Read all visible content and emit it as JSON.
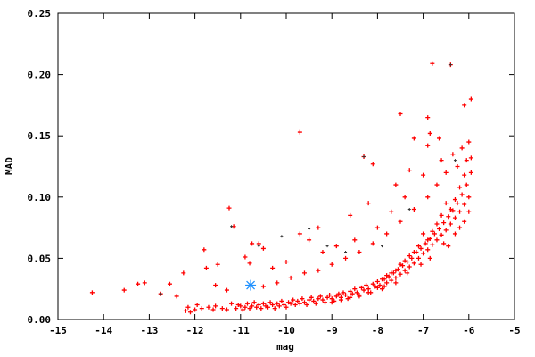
{
  "chart_data": {
    "type": "scatter",
    "title": "",
    "xlabel": "mag",
    "ylabel": "MAD",
    "xlim": [
      -15,
      -5
    ],
    "ylim": [
      0,
      0.25
    ],
    "grid": false,
    "xticks": [
      "-15",
      "-14",
      "-13",
      "-12",
      "-11",
      "-10",
      "-9",
      "-8",
      "-7",
      "-6",
      "-5"
    ],
    "yticks": [
      "0.00",
      "0.05",
      "0.10",
      "0.15",
      "0.20",
      "0.25"
    ],
    "colors": {
      "main": "#ff0000",
      "secondary": "#333333",
      "highlight": "#1e90ff"
    },
    "series": [
      {
        "marker": "plus",
        "color": "#ff0000",
        "points": [
          [
            -12.2,
            0.007
          ],
          [
            -12.15,
            0.01
          ],
          [
            -12.1,
            0.006
          ],
          [
            -12.0,
            0.008
          ],
          [
            -11.95,
            0.012
          ],
          [
            -11.85,
            0.009
          ],
          [
            -11.7,
            0.01
          ],
          [
            -11.6,
            0.008
          ],
          [
            -11.55,
            0.011
          ],
          [
            -11.4,
            0.009
          ],
          [
            -11.3,
            0.008
          ],
          [
            -11.2,
            0.013
          ],
          [
            -11.1,
            0.009
          ],
          [
            -11.05,
            0.012
          ],
          [
            -11.0,
            0.011
          ],
          [
            -10.95,
            0.008
          ],
          [
            -10.9,
            0.01
          ],
          [
            -10.85,
            0.013
          ],
          [
            -10.8,
            0.009
          ],
          [
            -10.75,
            0.011
          ],
          [
            -10.7,
            0.014
          ],
          [
            -10.65,
            0.01
          ],
          [
            -10.6,
            0.012
          ],
          [
            -10.55,
            0.009
          ],
          [
            -10.5,
            0.013
          ],
          [
            -10.45,
            0.011
          ],
          [
            -10.4,
            0.01
          ],
          [
            -10.35,
            0.014
          ],
          [
            -10.3,
            0.012
          ],
          [
            -10.25,
            0.009
          ],
          [
            -10.2,
            0.013
          ],
          [
            -10.15,
            0.011
          ],
          [
            -10.1,
            0.015
          ],
          [
            -10.05,
            0.012
          ],
          [
            -10.0,
            0.01
          ],
          [
            -9.95,
            0.014
          ],
          [
            -9.9,
            0.013
          ],
          [
            -9.85,
            0.016
          ],
          [
            -9.8,
            0.012
          ],
          [
            -9.75,
            0.015
          ],
          [
            -9.7,
            0.013
          ],
          [
            -9.65,
            0.017
          ],
          [
            -9.6,
            0.014
          ],
          [
            -9.55,
            0.012
          ],
          [
            -9.5,
            0.016
          ],
          [
            -9.45,
            0.018
          ],
          [
            -9.4,
            0.015
          ],
          [
            -9.35,
            0.013
          ],
          [
            -9.3,
            0.017
          ],
          [
            -9.25,
            0.019
          ],
          [
            -9.2,
            0.016
          ],
          [
            -9.15,
            0.014
          ],
          [
            -9.1,
            0.018
          ],
          [
            -9.05,
            0.02
          ],
          [
            -9.0,
            0.017
          ],
          [
            -8.95,
            0.015
          ],
          [
            -8.9,
            0.019
          ],
          [
            -8.85,
            0.021
          ],
          [
            -8.8,
            0.018
          ],
          [
            -8.75,
            0.022
          ],
          [
            -8.7,
            0.02
          ],
          [
            -8.65,
            0.017
          ],
          [
            -8.6,
            0.023
          ],
          [
            -8.55,
            0.021
          ],
          [
            -8.5,
            0.025
          ],
          [
            -8.45,
            0.022
          ],
          [
            -8.4,
            0.019
          ],
          [
            -8.35,
            0.026
          ],
          [
            -8.3,
            0.024
          ],
          [
            -8.25,
            0.028
          ],
          [
            -8.2,
            0.025
          ],
          [
            -8.15,
            0.022
          ],
          [
            -8.1,
            0.029
          ],
          [
            -8.05,
            0.027
          ],
          [
            -8.0,
            0.031
          ],
          [
            -7.95,
            0.028
          ],
          [
            -7.9,
            0.025
          ],
          [
            -7.85,
            0.033
          ],
          [
            -7.8,
            0.03
          ],
          [
            -7.75,
            0.035
          ],
          [
            -7.7,
            0.032
          ],
          [
            -7.65,
            0.038
          ],
          [
            -7.6,
            0.034
          ],
          [
            -7.55,
            0.041
          ],
          [
            -7.5,
            0.037
          ],
          [
            -7.45,
            0.044
          ],
          [
            -7.4,
            0.04
          ],
          [
            -7.35,
            0.047
          ],
          [
            -7.3,
            0.043
          ],
          [
            -7.25,
            0.05
          ],
          [
            -7.2,
            0.046
          ],
          [
            -7.15,
            0.055
          ],
          [
            -7.1,
            0.05
          ],
          [
            -7.05,
            0.058
          ],
          [
            -7.0,
            0.054
          ],
          [
            -6.95,
            0.062
          ],
          [
            -6.9,
            0.057
          ],
          [
            -6.85,
            0.066
          ],
          [
            -6.8,
            0.061
          ],
          [
            -6.75,
            0.07
          ],
          [
            -6.7,
            0.065
          ],
          [
            -6.65,
            0.074
          ],
          [
            -6.6,
            0.069
          ],
          [
            -6.55,
            0.079
          ],
          [
            -6.5,
            0.073
          ],
          [
            -6.45,
            0.084
          ],
          [
            -6.4,
            0.078
          ],
          [
            -6.35,
            0.089
          ],
          [
            -6.3,
            0.083
          ],
          [
            -6.25,
            0.095
          ],
          [
            -6.2,
            0.088
          ],
          [
            -6.15,
            0.102
          ],
          [
            -6.1,
            0.094
          ],
          [
            -6.05,
            0.11
          ],
          [
            -6.0,
            0.1
          ],
          [
            -5.95,
            0.12
          ],
          [
            -6.05,
            0.13
          ],
          [
            -6.1,
            0.118
          ],
          [
            -6.2,
            0.108
          ],
          [
            -6.3,
            0.098
          ],
          [
            -6.4,
            0.09
          ],
          [
            -6.15,
            0.14
          ],
          [
            -6.0,
            0.145
          ],
          [
            -5.95,
            0.132
          ],
          [
            -6.25,
            0.125
          ],
          [
            -6.5,
            0.095
          ],
          [
            -6.6,
            0.085
          ],
          [
            -6.7,
            0.078
          ],
          [
            -6.8,
            0.072
          ],
          [
            -6.9,
            0.065
          ],
          [
            -7.0,
            0.07
          ],
          [
            -7.1,
            0.06
          ],
          [
            -7.2,
            0.055
          ],
          [
            -7.3,
            0.052
          ],
          [
            -7.4,
            0.048
          ],
          [
            -7.5,
            0.045
          ],
          [
            -7.6,
            0.04
          ],
          [
            -7.7,
            0.038
          ],
          [
            -7.8,
            0.036
          ],
          [
            -7.9,
            0.033
          ],
          [
            -8.0,
            0.026
          ],
          [
            -8.2,
            0.022
          ],
          [
            -8.4,
            0.02
          ],
          [
            -8.6,
            0.018
          ],
          [
            -8.8,
            0.016
          ],
          [
            -9.0,
            0.014
          ],
          [
            -6.45,
            0.06
          ],
          [
            -6.55,
            0.062
          ],
          [
            -6.85,
            0.05
          ],
          [
            -7.05,
            0.045
          ],
          [
            -7.35,
            0.038
          ],
          [
            -7.6,
            0.03
          ],
          [
            -7.85,
            0.027
          ],
          [
            -6.2,
            0.075
          ],
          [
            -6.3,
            0.07
          ],
          [
            -6.0,
            0.088
          ],
          [
            -6.1,
            0.08
          ],
          [
            -6.5,
            0.12
          ],
          [
            -6.7,
            0.11
          ],
          [
            -6.9,
            0.1
          ],
          [
            -7.2,
            0.09
          ],
          [
            -7.5,
            0.08
          ],
          [
            -7.8,
            0.07
          ],
          [
            -8.1,
            0.062
          ],
          [
            -8.4,
            0.055
          ],
          [
            -8.7,
            0.05
          ],
          [
            -9.0,
            0.045
          ],
          [
            -9.3,
            0.04
          ],
          [
            -9.6,
            0.038
          ],
          [
            -9.9,
            0.034
          ],
          [
            -10.2,
            0.03
          ],
          [
            -10.5,
            0.027
          ],
          [
            -6.35,
            0.135
          ],
          [
            -6.6,
            0.13
          ],
          [
            -7.0,
            0.118
          ],
          [
            -7.4,
            0.1
          ],
          [
            -7.7,
            0.088
          ],
          [
            -8.0,
            0.075
          ],
          [
            -8.5,
            0.065
          ],
          [
            -8.9,
            0.06
          ],
          [
            -9.2,
            0.055
          ],
          [
            -9.5,
            0.065
          ],
          [
            -9.7,
            0.07
          ],
          [
            -10.0,
            0.047
          ],
          [
            -10.3,
            0.042
          ],
          [
            -6.65,
            0.148
          ],
          [
            -6.9,
            0.142
          ],
          [
            -7.3,
            0.122
          ],
          [
            -7.6,
            0.11
          ],
          [
            -8.2,
            0.095
          ],
          [
            -8.6,
            0.085
          ],
          [
            -9.3,
            0.075
          ],
          [
            -14.25,
            0.022
          ],
          [
            -13.55,
            0.024
          ],
          [
            -13.25,
            0.029
          ],
          [
            -13.1,
            0.03
          ],
          [
            -12.75,
            0.021
          ],
          [
            -12.55,
            0.029
          ],
          [
            -12.4,
            0.019
          ],
          [
            -12.25,
            0.038
          ],
          [
            -11.8,
            0.057
          ],
          [
            -11.75,
            0.042
          ],
          [
            -11.5,
            0.045
          ],
          [
            -11.55,
            0.028
          ],
          [
            -11.3,
            0.024
          ],
          [
            -11.25,
            0.091
          ],
          [
            -11.15,
            0.076
          ],
          [
            -10.9,
            0.051
          ],
          [
            -10.8,
            0.046
          ],
          [
            -10.75,
            0.062
          ],
          [
            -10.6,
            0.062
          ],
          [
            -10.5,
            0.058
          ],
          [
            -9.7,
            0.153
          ],
          [
            -6.8,
            0.209
          ],
          [
            -6.4,
            0.208
          ],
          [
            -5.95,
            0.18
          ],
          [
            -7.5,
            0.168
          ],
          [
            -8.3,
            0.133
          ],
          [
            -8.1,
            0.127
          ],
          [
            -6.9,
            0.165
          ],
          [
            -6.1,
            0.175
          ],
          [
            -6.85,
            0.152
          ],
          [
            -7.2,
            0.148
          ]
        ]
      },
      {
        "marker": "dot",
        "color": "#333333",
        "points": [
          [
            -9.5,
            0.074
          ],
          [
            -8.3,
            0.133
          ],
          [
            -9.1,
            0.06
          ],
          [
            -10.6,
            0.06
          ],
          [
            -7.3,
            0.09
          ],
          [
            -6.4,
            0.208
          ],
          [
            -6.3,
            0.13
          ],
          [
            -10.1,
            0.068
          ],
          [
            -8.7,
            0.055
          ],
          [
            -11.2,
            0.076
          ],
          [
            -12.75,
            0.021
          ],
          [
            -7.9,
            0.06
          ]
        ]
      },
      {
        "marker": "star",
        "color": "#1e90ff",
        "points": [
          [
            -10.78,
            0.028
          ]
        ]
      }
    ]
  }
}
